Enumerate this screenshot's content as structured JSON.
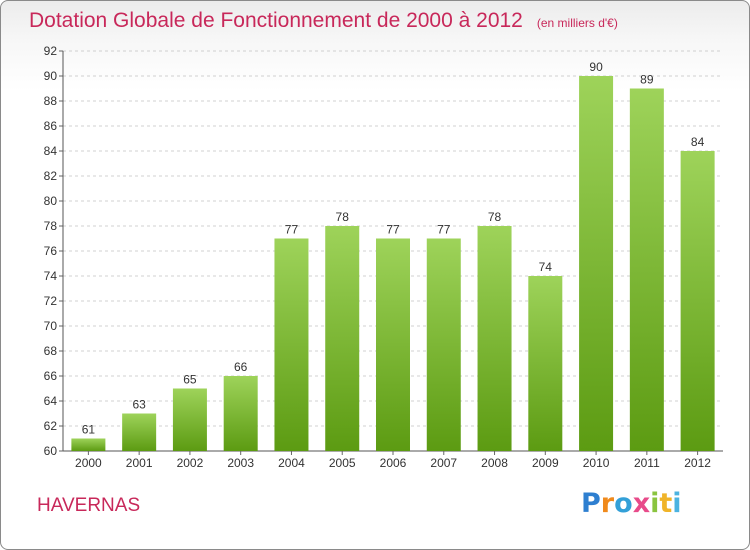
{
  "header": {
    "title": "Dotation Globale de Fonctionnement de 2000 à 2012",
    "subtitle": "(en milliers d'€)"
  },
  "footer": {
    "commune": "HAVERNAS",
    "logo_text": "Proxiti",
    "logo_colors": [
      "#2e7fd0",
      "#f08a1c",
      "#33a0d8",
      "#e84b8a",
      "#8ac43f",
      "#f0b429",
      "#4bb3e0"
    ]
  },
  "colors": {
    "bar_top": "#9ed35a",
    "bar_bottom": "#5c9b12",
    "accent": "#c8285a"
  },
  "chart_data": {
    "type": "bar",
    "title": "Dotation Globale de Fonctionnement de 2000 à 2012",
    "subtitle": "(en milliers d'€)",
    "categories": [
      "2000",
      "2001",
      "2002",
      "2003",
      "2004",
      "2005",
      "2006",
      "2007",
      "2008",
      "2009",
      "2010",
      "2011",
      "2012"
    ],
    "values": [
      61,
      63,
      65,
      66,
      77,
      78,
      77,
      77,
      78,
      74,
      90,
      89,
      84
    ],
    "ylim": [
      60,
      92
    ],
    "yticks": [
      60,
      62,
      64,
      66,
      68,
      70,
      72,
      74,
      76,
      78,
      80,
      82,
      84,
      86,
      88,
      90,
      92
    ],
    "grid": true,
    "data_labels": true,
    "xlabel": "",
    "ylabel": ""
  }
}
